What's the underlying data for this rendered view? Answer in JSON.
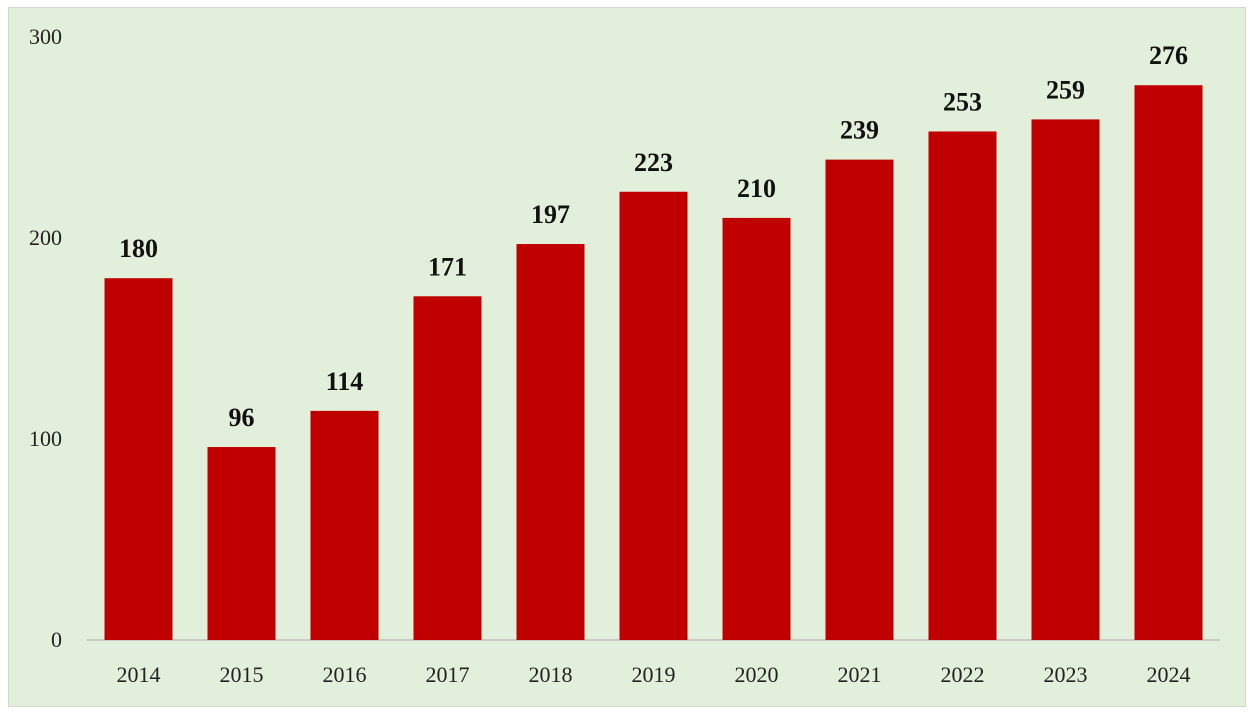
{
  "chart_data": {
    "type": "bar",
    "title": "",
    "xlabel": "",
    "ylabel": "",
    "categories": [
      "2014",
      "2015",
      "2016",
      "2017",
      "2018",
      "2019",
      "2020",
      "2021",
      "2022",
      "2023",
      "2024"
    ],
    "values": [
      180,
      96,
      114,
      171,
      197,
      223,
      210,
      239,
      253,
      259,
      276
    ],
    "ylim": [
      0,
      300
    ],
    "yticks": [
      0,
      100,
      200,
      300
    ],
    "grid": false,
    "legend": "none",
    "colors": {
      "bar": "#c00000",
      "background": "#e2efda",
      "axis": "#bfbfbf"
    }
  }
}
